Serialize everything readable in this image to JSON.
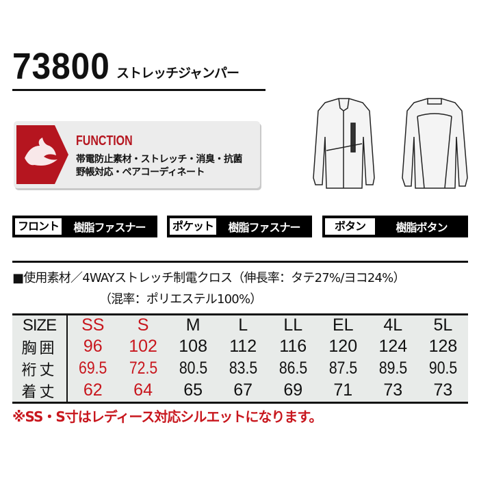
{
  "header": {
    "model_number": "73800",
    "product_name": "ストレッチジャンパー"
  },
  "function": {
    "title": "FUNCTION",
    "line1": "帯電防止素材・ストレッチ・消臭・抗菌",
    "line2": "野帳対応・ペアコーディネート",
    "icon": "dragon-logo",
    "accent": "#b5151f"
  },
  "specs": [
    {
      "key": "フロント",
      "value": "樹脂ファスナー"
    },
    {
      "key": "ポケット",
      "value": "樹脂ファスナー"
    },
    {
      "key": "ボタン",
      "value": "樹脂ボタン"
    }
  ],
  "material": {
    "line1": "■使用素材／4WAYストレッチ制電クロス（伸長率：タテ27%/ヨコ24%）",
    "line2": "（混率：ポリエステル100%）"
  },
  "size_table": {
    "headers": [
      "SIZE",
      "SS",
      "S",
      "M",
      "L",
      "LL",
      "EL",
      "4L",
      "5L"
    ],
    "rows": [
      {
        "label": "胸囲",
        "values": [
          "96",
          "102",
          "108",
          "112",
          "116",
          "120",
          "124",
          "128"
        ]
      },
      {
        "label": "裄丈",
        "values": [
          "69.5",
          "72.5",
          "80.5",
          "83.5",
          "86.5",
          "87.5",
          "89.5",
          "90.5"
        ]
      },
      {
        "label": "着丈",
        "values": [
          "62",
          "64",
          "65",
          "67",
          "69",
          "71",
          "73",
          "73"
        ]
      }
    ],
    "highlight_color": "#c8161d"
  },
  "note": "※SS・S寸はレディース対応シルエットになります。"
}
